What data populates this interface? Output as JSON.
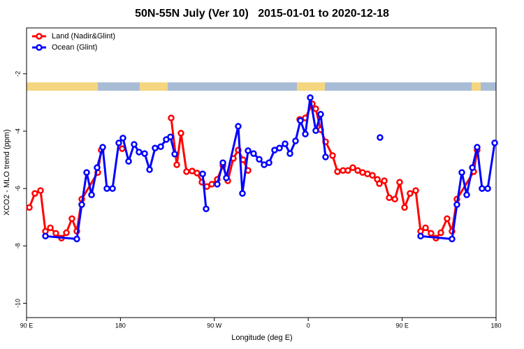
{
  "chart_data": {
    "type": "line",
    "title": "50N-55N July (Ver 10)   2015-01-01 to 2020-12-18",
    "x_label": "Longitude (deg E)",
    "y_label": "XCO2 - MLO trend (ppm)",
    "xlim": [
      90,
      540
    ],
    "ylim": [
      -10.5,
      -0.4
    ],
    "xticks": [
      {
        "value": 90,
        "label": "90 E"
      },
      180,
      {
        "value": 270,
        "label": "90 W"
      },
      {
        "value": 360,
        "label": "0"
      },
      {
        "value": 450,
        "label": "90 E"
      },
      {
        "value": 540,
        "label": "180"
      }
    ],
    "yticks": [
      -2,
      -4,
      -6,
      -8,
      -10
    ],
    "legend": "top-left",
    "series": [
      {
        "name": "Land (Nadir&Glint)",
        "color": "#ff0000",
        "x": [
          92.7,
          98.0,
          103.4,
          108.1,
          112.8,
          118.1,
          123.5,
          128.2,
          133.5,
          138.2,
          142.9,
          158.3,
          161.6,
          null,
          181.7,
          null,
          228.6,
          234.0,
          238.0,
          243.3,
          248.7,
          253.4,
          258.1,
          262.8,
          267.5,
          272.8,
          278.2,
          282.9,
          288.2,
          292.9,
          297.6,
          302.3,
          null,
          351.8,
          357.2,
          363.9,
          367.2,
          371.9,
          376.6,
          383.3,
          388.0,
          393.3,
          398.0,
          402.7,
          407.4,
          412.1,
          416.8,
          421.5,
          426.2,
          428.2,
          432.9,
          437.6,
          443.0,
          447.6,
          452.3,
          457.6,
          463.0,
          467.7,
          472.4,
          477.7,
          482.4,
          487.1,
          493.1,
          497.8,
          502.5,
          518.6,
          521.9
        ],
        "values": [
          -6.66,
          -6.17,
          -6.07,
          -7.49,
          -7.37,
          -7.56,
          -7.73,
          -7.54,
          -7.05,
          -7.49,
          -6.37,
          -5.44,
          -4.66,
          null,
          -4.61,
          null,
          -3.54,
          -5.17,
          -4.07,
          -5.41,
          -5.39,
          -5.46,
          -5.78,
          -5.93,
          -5.85,
          -5.68,
          -5.2,
          -5.73,
          -4.95,
          -4.66,
          -5.0,
          -5.37,
          null,
          -3.59,
          -3.54,
          -3.05,
          -3.22,
          -3.95,
          -4.37,
          -4.85,
          -5.41,
          -5.37,
          -5.37,
          -5.27,
          -5.37,
          -5.44,
          -5.49,
          -5.54,
          -5.68,
          -5.83,
          -5.73,
          -6.32,
          -6.37,
          -5.78,
          -6.66,
          -6.17,
          -6.07,
          -7.49,
          -7.37,
          -7.56,
          -7.73,
          -7.54,
          -7.05,
          -7.49,
          -6.37,
          -5.41,
          -4.66
        ]
      },
      {
        "name": "Ocean (Glint)",
        "color": "#0000ff",
        "x": [
          108.1,
          138.2,
          142.9,
          147.6,
          152.3,
          157.6,
          163.0,
          167.0,
          172.4,
          178.4,
          182.4,
          187.8,
          193.1,
          197.8,
          203.2,
          207.9,
          213.2,
          218.6,
          223.9,
          227.9,
          232.0,
          null,
          258.8,
          262.1,
          null,
          272.8,
          278.2,
          281.5,
          292.9,
          296.9,
          302.3,
          307.6,
          313.0,
          317.7,
          322.4,
          327.7,
          332.4,
          337.8,
          342.5,
          347.8,
          352.5,
          357.2,
          361.9,
          367.2,
          371.9,
          376.6,
          null,
          428.8,
          null,
          467.7,
          497.8,
          502.5,
          507.2,
          511.9,
          517.3,
          521.9,
          526.6,
          532.0,
          538.7
        ],
        "values": [
          -7.66,
          -7.76,
          -6.56,
          -5.44,
          -6.22,
          -5.27,
          -4.56,
          -6.0,
          -6.0,
          -4.41,
          -4.24,
          -5.05,
          -4.46,
          -4.73,
          -4.78,
          -5.34,
          -4.59,
          -4.54,
          -4.29,
          -4.2,
          -4.8,
          null,
          -5.49,
          -6.71,
          null,
          -5.85,
          -5.1,
          -5.63,
          -3.83,
          -6.17,
          -4.68,
          -4.78,
          -4.98,
          -5.17,
          -5.1,
          -4.66,
          -4.59,
          -4.44,
          -4.78,
          -4.34,
          -3.63,
          -4.1,
          -2.83,
          -3.98,
          -3.41,
          -4.9,
          null,
          -4.22,
          null,
          -7.66,
          -7.76,
          -6.56,
          -5.44,
          -6.22,
          -5.27,
          -4.56,
          -6.0,
          -6.0,
          -4.41
        ]
      }
    ]
  }
}
